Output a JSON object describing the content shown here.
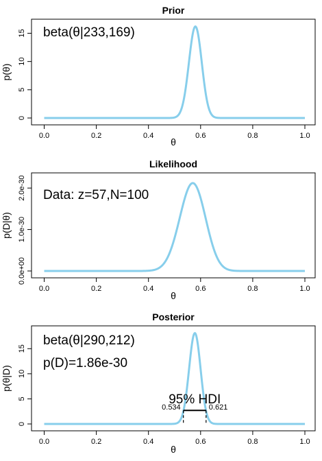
{
  "chart_data": [
    {
      "type": "line",
      "title": "Prior",
      "xlabel": "θ",
      "ylabel": "p(θ)",
      "xlim": [
        0,
        1
      ],
      "ylim": [
        0,
        17
      ],
      "xticks": [
        "0.0",
        "0.2",
        "0.4",
        "0.6",
        "0.8",
        "1.0"
      ],
      "yticks": [
        "0",
        "5",
        "10",
        "15"
      ],
      "annotations": [
        "beta(θ|233,169)"
      ],
      "color": "#87ceeb",
      "dist": {
        "kind": "beta",
        "a": 233,
        "b": 169
      },
      "peak_y": 16.2
    },
    {
      "type": "line",
      "title": "Likelihood",
      "xlabel": "θ",
      "ylabel": "p(D|θ)",
      "xlim": [
        0,
        1
      ],
      "ylim": [
        0,
        2.3e-30
      ],
      "xticks": [
        "0.0",
        "0.2",
        "0.4",
        "0.6",
        "0.8",
        "1.0"
      ],
      "yticks": [
        "0.0e+00",
        "1.0e-30",
        "2.0e-30"
      ],
      "annotations": [
        "Data: z=57,N=100"
      ],
      "color": "#87ceeb",
      "dist": {
        "kind": "beta",
        "a": 58,
        "b": 44
      },
      "peak_y": 2.12e-30
    },
    {
      "type": "line",
      "title": "Posterior",
      "xlabel": "θ",
      "ylabel": "p(θ|D)",
      "xlim": [
        0,
        1
      ],
      "ylim": [
        0,
        19
      ],
      "xticks": [
        "0.0",
        "0.2",
        "0.4",
        "0.6",
        "0.8",
        "1.0"
      ],
      "yticks": [
        "0",
        "5",
        "10",
        "15"
      ],
      "annotations": [
        "beta(θ|290,212)",
        "p(D)=1.86e-30"
      ],
      "color": "#87ceeb",
      "dist": {
        "kind": "beta",
        "a": 290,
        "b": 212
      },
      "peak_y": 18.1,
      "hdi": {
        "label": "95% HDI",
        "low": 0.534,
        "high": 0.621,
        "low_label": "0.534",
        "high_label": "0.621",
        "y": 2.7
      }
    }
  ]
}
